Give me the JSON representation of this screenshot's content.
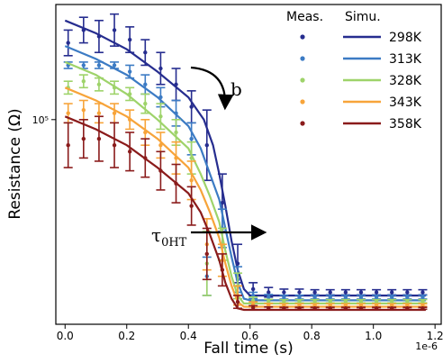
{
  "chart_data": {
    "type": "line",
    "xlabel": "Fall time (s)",
    "ylabel": "Resistance (Ω)",
    "x_scale_label": "1e-6",
    "y_scale": "log",
    "xlim": [
      -0.03,
      1.22
    ],
    "ylim_rel": [
      0.0,
      1.0
    ],
    "xticks": [
      "0.0",
      "0.2",
      "0.4",
      "0.6",
      "0.8",
      "1.0",
      "1.2"
    ],
    "xtick_values": [
      0.0,
      0.2,
      0.4,
      0.6,
      0.8,
      1.0,
      1.2
    ],
    "yticks": [
      {
        "label": "10⁵",
        "value": 0.64
      }
    ],
    "legend": {
      "position": "top-right",
      "header_meas": "Meas.",
      "header_simu": "Simu."
    },
    "annotations": [
      {
        "text": "b",
        "kind": "curved-arrow-down"
      },
      {
        "text": "τ",
        "sub": "0HT",
        "kind": "right-arrow"
      }
    ],
    "series": [
      {
        "name": "298K",
        "color": "#262d8f",
        "simulated": [
          [
            0.0,
            0.95
          ],
          [
            0.1,
            0.91
          ],
          [
            0.2,
            0.86
          ],
          [
            0.3,
            0.79
          ],
          [
            0.4,
            0.71
          ],
          [
            0.45,
            0.64
          ],
          [
            0.48,
            0.56
          ],
          [
            0.5,
            0.47
          ],
          [
            0.52,
            0.37
          ],
          [
            0.54,
            0.26
          ],
          [
            0.56,
            0.17
          ],
          [
            0.58,
            0.11
          ],
          [
            0.6,
            0.09
          ],
          [
            1.17,
            0.09
          ]
        ],
        "measured": [
          {
            "x": 0.01,
            "y": 0.88,
            "err": 0.04
          },
          {
            "x": 0.06,
            "y": 0.92,
            "err": 0.04
          },
          {
            "x": 0.11,
            "y": 0.9,
            "err": 0.05
          },
          {
            "x": 0.16,
            "y": 0.92,
            "err": 0.05
          },
          {
            "x": 0.21,
            "y": 0.89,
            "err": 0.04
          },
          {
            "x": 0.26,
            "y": 0.85,
            "err": 0.04
          },
          {
            "x": 0.31,
            "y": 0.8,
            "err": 0.05
          },
          {
            "x": 0.36,
            "y": 0.75,
            "err": 0.05
          },
          {
            "x": 0.41,
            "y": 0.68,
            "err": 0.05
          },
          {
            "x": 0.46,
            "y": 0.56,
            "err": 0.11
          },
          {
            "x": 0.51,
            "y": 0.38,
            "err": 0.09
          },
          {
            "x": 0.56,
            "y": 0.19,
            "err": 0.06
          },
          {
            "x": 0.61,
            "y": 0.11,
            "err": 0.02
          },
          {
            "x": 0.66,
            "y": 0.1,
            "err": 0.015
          },
          {
            "x": 0.71,
            "y": 0.1,
            "err": 0.01
          },
          {
            "x": 0.76,
            "y": 0.1,
            "err": 0.01
          },
          {
            "x": 0.81,
            "y": 0.1,
            "err": 0.008
          },
          {
            "x": 0.86,
            "y": 0.1,
            "err": 0.008
          },
          {
            "x": 0.91,
            "y": 0.1,
            "err": 0.008
          },
          {
            "x": 0.96,
            "y": 0.1,
            "err": 0.008
          },
          {
            "x": 1.01,
            "y": 0.1,
            "err": 0.008
          },
          {
            "x": 1.06,
            "y": 0.1,
            "err": 0.008
          },
          {
            "x": 1.11,
            "y": 0.1,
            "err": 0.008
          },
          {
            "x": 1.16,
            "y": 0.1,
            "err": 0.008
          }
        ]
      },
      {
        "name": "313K",
        "color": "#3c7bc4",
        "simulated": [
          [
            0.0,
            0.87
          ],
          [
            0.1,
            0.83
          ],
          [
            0.2,
            0.78
          ],
          [
            0.3,
            0.71
          ],
          [
            0.4,
            0.62
          ],
          [
            0.44,
            0.55
          ],
          [
            0.47,
            0.47
          ],
          [
            0.5,
            0.39
          ],
          [
            0.52,
            0.3
          ],
          [
            0.54,
            0.21
          ],
          [
            0.56,
            0.13
          ],
          [
            0.58,
            0.08
          ],
          [
            0.6,
            0.075
          ],
          [
            1.17,
            0.075
          ]
        ],
        "measured": [
          {
            "x": 0.01,
            "y": 0.81,
            "err": 0.01
          },
          {
            "x": 0.06,
            "y": 0.81,
            "err": 0.01
          },
          {
            "x": 0.11,
            "y": 0.81,
            "err": 0.01
          },
          {
            "x": 0.16,
            "y": 0.81,
            "err": 0.01
          },
          {
            "x": 0.21,
            "y": 0.79,
            "err": 0.02
          },
          {
            "x": 0.26,
            "y": 0.75,
            "err": 0.03
          },
          {
            "x": 0.31,
            "y": 0.71,
            "err": 0.03
          },
          {
            "x": 0.36,
            "y": 0.66,
            "err": 0.04
          },
          {
            "x": 0.41,
            "y": 0.58,
            "err": 0.05
          },
          {
            "x": 0.46,
            "y": 0.15,
            "err": 0.06
          },
          {
            "x": 0.51,
            "y": 0.3,
            "err": 0.06
          },
          {
            "x": 0.56,
            "y": 0.14,
            "err": 0.04
          },
          {
            "x": 0.61,
            "y": 0.09,
            "err": 0.01
          },
          {
            "x": 0.66,
            "y": 0.085,
            "err": 0.008
          },
          {
            "x": 0.71,
            "y": 0.085,
            "err": 0.006
          },
          {
            "x": 0.76,
            "y": 0.085,
            "err": 0.006
          },
          {
            "x": 0.81,
            "y": 0.085,
            "err": 0.006
          },
          {
            "x": 0.86,
            "y": 0.085,
            "err": 0.006
          },
          {
            "x": 0.91,
            "y": 0.085,
            "err": 0.006
          },
          {
            "x": 0.96,
            "y": 0.085,
            "err": 0.006
          },
          {
            "x": 1.01,
            "y": 0.085,
            "err": 0.006
          },
          {
            "x": 1.06,
            "y": 0.085,
            "err": 0.006
          },
          {
            "x": 1.11,
            "y": 0.085,
            "err": 0.006
          },
          {
            "x": 1.16,
            "y": 0.085,
            "err": 0.006
          }
        ]
      },
      {
        "name": "328K",
        "color": "#9ed36a",
        "simulated": [
          [
            0.0,
            0.82
          ],
          [
            0.1,
            0.78
          ],
          [
            0.2,
            0.72
          ],
          [
            0.3,
            0.64
          ],
          [
            0.4,
            0.55
          ],
          [
            0.44,
            0.47
          ],
          [
            0.47,
            0.4
          ],
          [
            0.5,
            0.32
          ],
          [
            0.52,
            0.23
          ],
          [
            0.54,
            0.15
          ],
          [
            0.56,
            0.09
          ],
          [
            0.58,
            0.065
          ],
          [
            0.6,
            0.065
          ],
          [
            1.17,
            0.065
          ]
        ],
        "measured": [
          {
            "x": 0.01,
            "y": 0.74,
            "err": 0.02
          },
          {
            "x": 0.06,
            "y": 0.76,
            "err": 0.02
          },
          {
            "x": 0.11,
            "y": 0.75,
            "err": 0.02
          },
          {
            "x": 0.16,
            "y": 0.74,
            "err": 0.02
          },
          {
            "x": 0.21,
            "y": 0.72,
            "err": 0.02
          },
          {
            "x": 0.26,
            "y": 0.69,
            "err": 0.03
          },
          {
            "x": 0.31,
            "y": 0.65,
            "err": 0.04
          },
          {
            "x": 0.36,
            "y": 0.6,
            "err": 0.04
          },
          {
            "x": 0.41,
            "y": 0.52,
            "err": 0.05
          },
          {
            "x": 0.46,
            "y": 0.19,
            "err": 0.1
          },
          {
            "x": 0.51,
            "y": 0.25,
            "err": 0.05
          },
          {
            "x": 0.56,
            "y": 0.12,
            "err": 0.04
          },
          {
            "x": 0.61,
            "y": 0.075,
            "err": 0.01
          },
          {
            "x": 0.66,
            "y": 0.072,
            "err": 0.006
          },
          {
            "x": 0.71,
            "y": 0.072,
            "err": 0.005
          },
          {
            "x": 0.76,
            "y": 0.072,
            "err": 0.005
          },
          {
            "x": 0.81,
            "y": 0.072,
            "err": 0.005
          },
          {
            "x": 0.86,
            "y": 0.072,
            "err": 0.005
          },
          {
            "x": 0.91,
            "y": 0.072,
            "err": 0.005
          },
          {
            "x": 0.96,
            "y": 0.072,
            "err": 0.005
          },
          {
            "x": 1.01,
            "y": 0.072,
            "err": 0.005
          },
          {
            "x": 1.06,
            "y": 0.072,
            "err": 0.005
          },
          {
            "x": 1.11,
            "y": 0.072,
            "err": 0.005
          },
          {
            "x": 1.16,
            "y": 0.072,
            "err": 0.005
          }
        ]
      },
      {
        "name": "343K",
        "color": "#f7a43a",
        "simulated": [
          [
            0.0,
            0.74
          ],
          [
            0.1,
            0.7
          ],
          [
            0.2,
            0.65
          ],
          [
            0.3,
            0.58
          ],
          [
            0.4,
            0.49
          ],
          [
            0.44,
            0.42
          ],
          [
            0.47,
            0.35
          ],
          [
            0.5,
            0.27
          ],
          [
            0.52,
            0.19
          ],
          [
            0.54,
            0.12
          ],
          [
            0.56,
            0.07
          ],
          [
            0.58,
            0.055
          ],
          [
            0.6,
            0.055
          ],
          [
            1.17,
            0.055
          ]
        ],
        "measured": [
          {
            "x": 0.01,
            "y": 0.66,
            "err": 0.03
          },
          {
            "x": 0.06,
            "y": 0.67,
            "err": 0.03
          },
          {
            "x": 0.11,
            "y": 0.66,
            "err": 0.03
          },
          {
            "x": 0.16,
            "y": 0.66,
            "err": 0.03
          },
          {
            "x": 0.21,
            "y": 0.64,
            "err": 0.03
          },
          {
            "x": 0.26,
            "y": 0.6,
            "err": 0.04
          },
          {
            "x": 0.31,
            "y": 0.56,
            "err": 0.04
          },
          {
            "x": 0.36,
            "y": 0.52,
            "err": 0.05
          },
          {
            "x": 0.41,
            "y": 0.45,
            "err": 0.06
          },
          {
            "x": 0.46,
            "y": 0.25,
            "err": 0.08
          },
          {
            "x": 0.51,
            "y": 0.2,
            "err": 0.05
          },
          {
            "x": 0.56,
            "y": 0.09,
            "err": 0.03
          },
          {
            "x": 0.61,
            "y": 0.062,
            "err": 0.008
          },
          {
            "x": 0.66,
            "y": 0.06,
            "err": 0.005
          },
          {
            "x": 0.71,
            "y": 0.06,
            "err": 0.004
          },
          {
            "x": 0.76,
            "y": 0.06,
            "err": 0.004
          },
          {
            "x": 0.81,
            "y": 0.06,
            "err": 0.004
          },
          {
            "x": 0.86,
            "y": 0.06,
            "err": 0.004
          },
          {
            "x": 0.91,
            "y": 0.06,
            "err": 0.004
          },
          {
            "x": 0.96,
            "y": 0.06,
            "err": 0.004
          },
          {
            "x": 1.01,
            "y": 0.06,
            "err": 0.004
          },
          {
            "x": 1.06,
            "y": 0.06,
            "err": 0.004
          },
          {
            "x": 1.11,
            "y": 0.06,
            "err": 0.004
          },
          {
            "x": 1.16,
            "y": 0.06,
            "err": 0.004
          }
        ]
      },
      {
        "name": "358K",
        "color": "#8a1b1b",
        "simulated": [
          [
            0.0,
            0.65
          ],
          [
            0.1,
            0.61
          ],
          [
            0.2,
            0.56
          ],
          [
            0.3,
            0.49
          ],
          [
            0.4,
            0.41
          ],
          [
            0.44,
            0.35
          ],
          [
            0.47,
            0.28
          ],
          [
            0.5,
            0.2
          ],
          [
            0.52,
            0.13
          ],
          [
            0.54,
            0.08
          ],
          [
            0.56,
            0.05
          ],
          [
            0.58,
            0.045
          ],
          [
            0.6,
            0.045
          ],
          [
            1.17,
            0.045
          ]
        ],
        "measured": [
          {
            "x": 0.01,
            "y": 0.56,
            "err": 0.07
          },
          {
            "x": 0.06,
            "y": 0.58,
            "err": 0.06
          },
          {
            "x": 0.11,
            "y": 0.58,
            "err": 0.07
          },
          {
            "x": 0.16,
            "y": 0.56,
            "err": 0.07
          },
          {
            "x": 0.21,
            "y": 0.54,
            "err": 0.06
          },
          {
            "x": 0.26,
            "y": 0.52,
            "err": 0.06
          },
          {
            "x": 0.31,
            "y": 0.48,
            "err": 0.06
          },
          {
            "x": 0.36,
            "y": 0.44,
            "err": 0.06
          },
          {
            "x": 0.41,
            "y": 0.37,
            "err": 0.06
          },
          {
            "x": 0.46,
            "y": 0.22,
            "err": 0.08
          },
          {
            "x": 0.51,
            "y": 0.17,
            "err": 0.05
          },
          {
            "x": 0.56,
            "y": 0.07,
            "err": 0.02
          },
          {
            "x": 0.61,
            "y": 0.052,
            "err": 0.006
          },
          {
            "x": 0.66,
            "y": 0.05,
            "err": 0.004
          },
          {
            "x": 0.71,
            "y": 0.05,
            "err": 0.003
          },
          {
            "x": 0.76,
            "y": 0.05,
            "err": 0.003
          },
          {
            "x": 0.81,
            "y": 0.05,
            "err": 0.003
          },
          {
            "x": 0.86,
            "y": 0.05,
            "err": 0.003
          },
          {
            "x": 0.91,
            "y": 0.05,
            "err": 0.003
          },
          {
            "x": 0.96,
            "y": 0.05,
            "err": 0.003
          },
          {
            "x": 1.01,
            "y": 0.05,
            "err": 0.003
          },
          {
            "x": 1.06,
            "y": 0.05,
            "err": 0.003
          },
          {
            "x": 1.11,
            "y": 0.05,
            "err": 0.003
          },
          {
            "x": 1.16,
            "y": 0.05,
            "err": 0.003
          }
        ]
      }
    ]
  }
}
